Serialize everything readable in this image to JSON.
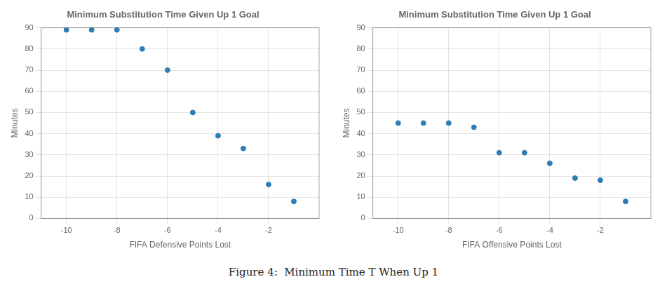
{
  "chart_data": [
    {
      "type": "scatter",
      "title": "Minimum Substitution Time Given Up 1 Goal",
      "xlabel": "FIFA Defensive Points Lost",
      "ylabel": "Minutes",
      "x": [
        -10,
        -9,
        -8,
        -7,
        -6,
        -5,
        -4,
        -3,
        -2,
        -1
      ],
      "values": [
        89,
        89,
        89,
        80,
        70,
        50,
        39,
        33,
        16,
        8
      ],
      "color": "#2e7eb5",
      "xlim": [
        -11,
        0
      ],
      "ylim": [
        0,
        90
      ],
      "xticks": [
        -10,
        -8,
        -6,
        -4,
        -2
      ],
      "yticks": [
        0,
        10,
        20,
        30,
        40,
        50,
        60,
        70,
        80,
        90
      ],
      "grid": true
    },
    {
      "type": "scatter",
      "title": "Minimum Substitution Time Given Up 1 Goal",
      "xlabel": "FIFA Offensive Points Lost",
      "ylabel": "Minutes",
      "x": [
        -10,
        -9,
        -8,
        -7,
        -6,
        -5,
        -4,
        -3,
        -2,
        -1
      ],
      "values": [
        45,
        45,
        45,
        43,
        31,
        31,
        26,
        19,
        18,
        8
      ],
      "color": "#2e7eb5",
      "xlim": [
        -11,
        0
      ],
      "ylim": [
        0,
        90
      ],
      "xticks": [
        -10,
        -8,
        -6,
        -4,
        -2
      ],
      "yticks": [
        0,
        10,
        20,
        30,
        40,
        50,
        60,
        70,
        80,
        90
      ],
      "grid": true
    }
  ],
  "caption": "Figure 4:  Minimum Time T When Up 1"
}
